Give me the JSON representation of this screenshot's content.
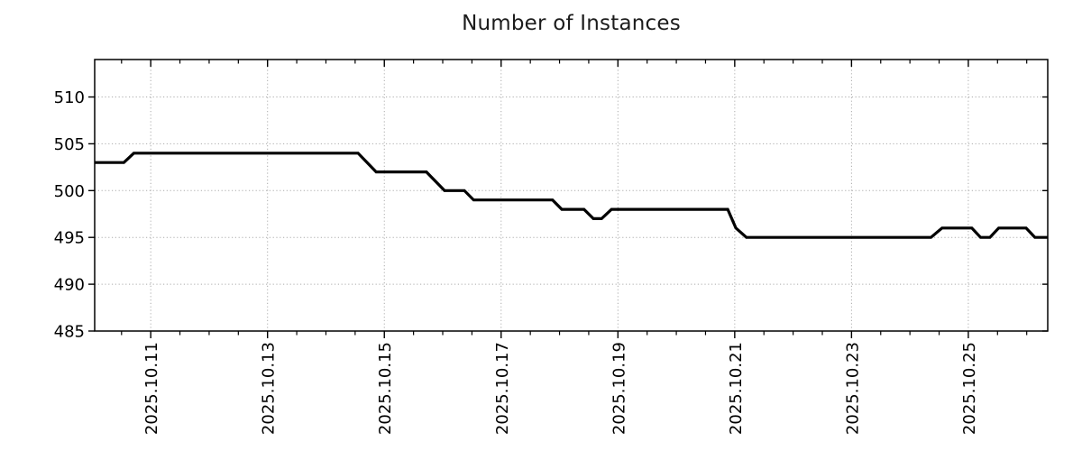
{
  "chart_data": {
    "type": "line",
    "title": "Number of Instances",
    "x_axis": {
      "unit": "date (fractional day of October 2025)",
      "xlim": [
        10.04,
        26.36
      ],
      "major_ticks": [
        {
          "pos": 11,
          "label": "2025.10.11"
        },
        {
          "pos": 13,
          "label": "2025.10.13"
        },
        {
          "pos": 15,
          "label": "2025.10.15"
        },
        {
          "pos": 17,
          "label": "2025.10.17"
        },
        {
          "pos": 19,
          "label": "2025.10.19"
        },
        {
          "pos": 21,
          "label": "2025.10.21"
        },
        {
          "pos": 23,
          "label": "2025.10.23"
        },
        {
          "pos": 25,
          "label": "2025.10.25"
        }
      ],
      "minor_tick_step": 0.5
    },
    "y_axis": {
      "ylim": [
        485,
        514
      ],
      "major_ticks": [
        {
          "pos": 485,
          "label": "485"
        },
        {
          "pos": 490,
          "label": "490"
        },
        {
          "pos": 495,
          "label": "495"
        },
        {
          "pos": 500,
          "label": "500"
        },
        {
          "pos": 505,
          "label": "505"
        },
        {
          "pos": 510,
          "label": "510"
        }
      ]
    },
    "grid": {
      "shown": true,
      "style": "dotted",
      "color": "#ababab"
    },
    "legend": {
      "shown": false
    },
    "axis_color": "#000000",
    "series": [
      {
        "name": "Number of Instances",
        "color": "#000000",
        "line_width": 3.2,
        "points": [
          [
            10.04,
            503
          ],
          [
            10.54,
            503
          ],
          [
            10.71,
            504
          ],
          [
            14.55,
            504
          ],
          [
            14.86,
            502
          ],
          [
            15.72,
            502
          ],
          [
            16.03,
            500
          ],
          [
            16.37,
            500
          ],
          [
            16.53,
            499
          ],
          [
            17.88,
            499
          ],
          [
            18.04,
            498
          ],
          [
            18.42,
            498
          ],
          [
            18.58,
            497
          ],
          [
            18.72,
            497
          ],
          [
            18.89,
            498
          ],
          [
            20.88,
            498
          ],
          [
            21.02,
            496
          ],
          [
            21.2,
            495
          ],
          [
            24.36,
            495
          ],
          [
            24.55,
            496
          ],
          [
            25.06,
            496
          ],
          [
            25.21,
            495
          ],
          [
            25.37,
            495
          ],
          [
            25.52,
            496
          ],
          [
            25.99,
            496
          ],
          [
            26.14,
            495
          ],
          [
            26.36,
            495
          ]
        ]
      }
    ]
  }
}
